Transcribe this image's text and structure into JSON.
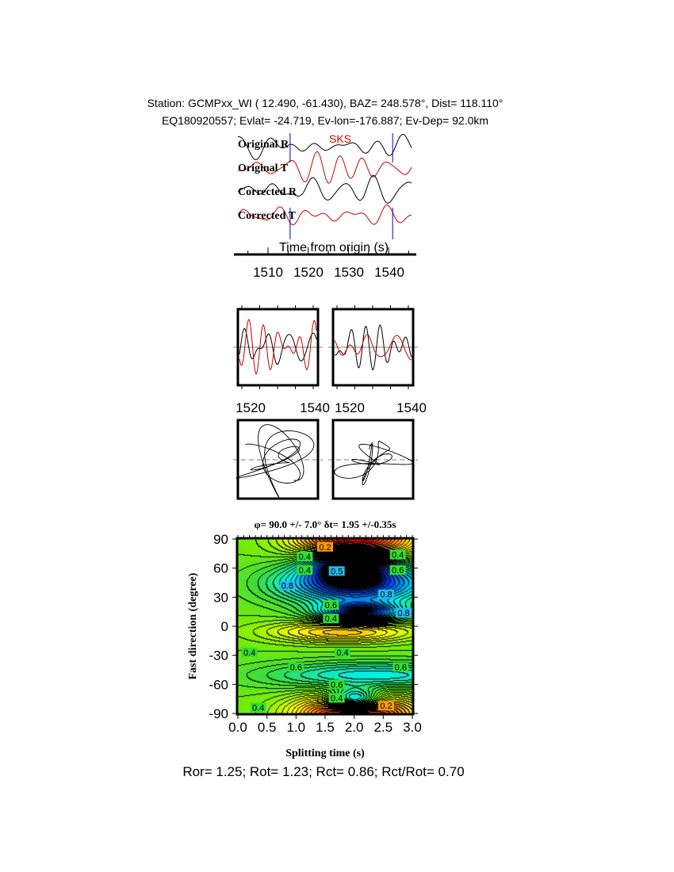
{
  "header": {
    "line1": "Station: GCMPxx_WI (  12.490,  -61.430), BAZ=  248.578°, Dist=  118.110°",
    "line2": "EQ180920557; Evlat= -24.719, Ev-lon=-176.887; Ev-Dep= 92.0km"
  },
  "chart_data": [
    {
      "type": "line",
      "phase_label": "SKS",
      "traces": [
        {
          "name": "Original R",
          "color": "#000000"
        },
        {
          "name": "Original T",
          "color": "#cc0000"
        },
        {
          "name": "Corrected R",
          "color": "#000000"
        },
        {
          "name": "Corrected T",
          "color": "#cc0000"
        }
      ],
      "xlabel": "Time from origin (s)",
      "xticks": [
        "1510",
        "1520",
        "1530",
        "1540"
      ],
      "window_marks_s": [
        1515.5,
        1541
      ],
      "window_color": "#0000cc"
    },
    {
      "type": "line",
      "panels": [
        {
          "xticks": [
            "1520",
            "1540"
          ]
        },
        {
          "xticks": [
            "1520",
            "1540"
          ]
        }
      ]
    },
    {
      "type": "scatter",
      "description_panels": [
        "particle-motion-original",
        "particle-motion-corrected"
      ]
    },
    {
      "type": "heatmap",
      "title": "φ= 90.0 +/- 7.0° δt= 1.95 +/-0.35s",
      "xlabel": "Splitting time (s)",
      "ylabel": "Fast direction (degree)",
      "xlim": [
        0,
        3
      ],
      "ylim": [
        -90,
        90
      ],
      "xticks": [
        "0.0",
        "0.5",
        "1.0",
        "1.5",
        "2.0",
        "2.5",
        "3.0"
      ],
      "yticks": [
        "90",
        "60",
        "30",
        "0",
        "-30",
        "-60",
        "-90"
      ],
      "contour_labels": [
        "0.2",
        "0.4",
        "0.4",
        "0.5",
        "0.8",
        "0.6",
        "0.8",
        "0.4",
        "0.8",
        "0.6",
        "0.4",
        "0.4",
        "0.4",
        "0.6",
        "0.6",
        "0.6",
        "0.4",
        "0.4",
        "0.2"
      ],
      "best_fit": {
        "phi": 90.0,
        "phi_err": 7.0,
        "dt": 1.95,
        "dt_err": 0.35
      }
    }
  ],
  "footer": {
    "stats": "Ror= 1.25; Rot= 1.23; Rct= 0.86; Rct/Rot= 0.70"
  }
}
